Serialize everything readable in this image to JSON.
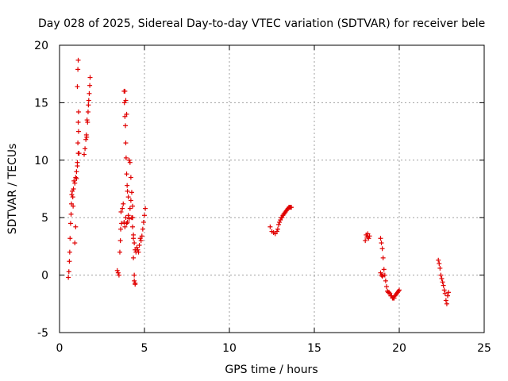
{
  "chart_data": {
    "type": "scatter",
    "title": "Day 028 of 2025, Sidereal Day-to-day VTEC variation (SDTVAR) for receiver bele",
    "xlabel": "GPS time / hours",
    "ylabel": "SDTVAR / TECUs",
    "xlim": [
      0,
      25
    ],
    "ylim": [
      -5,
      20
    ],
    "xticks": [
      0,
      5,
      10,
      15,
      20,
      25
    ],
    "yticks": [
      -5,
      0,
      5,
      10,
      15,
      20
    ],
    "grid": true,
    "marker": "+",
    "color": "#e00000",
    "series": [
      {
        "name": "SDTVAR",
        "segments": [
          {
            "x": [
              0.52,
              0.55,
              0.58,
              0.6,
              0.62,
              0.65,
              0.68,
              0.7,
              0.72,
              0.75,
              0.78,
              0.8,
              0.82,
              0.85,
              0.9,
              0.95,
              1.0,
              1.05,
              1.1,
              1.15
            ],
            "y": [
              -0.2,
              0.3,
              1.2,
              2.0,
              3.2,
              4.5,
              5.3,
              6.2,
              7.0,
              7.3,
              6.8,
              6.0,
              7.5,
              8.2,
              8.0,
              8.5,
              9.0,
              9.5,
              10.6,
              10.6
            ]
          },
          {
            "x": [
              0.9,
              0.95,
              1.0,
              1.05,
              1.08,
              1.1,
              1.12
            ],
            "y": [
              2.8,
              4.2,
              8.4,
              9.8,
              11.5,
              13.3,
              14.2
            ]
          },
          {
            "x": [
              1.05,
              1.08,
              1.1,
              1.12
            ],
            "y": [
              16.4,
              17.9,
              18.7,
              12.5
            ]
          },
          {
            "x": [
              1.45,
              1.5,
              1.55,
              1.58,
              1.6,
              1.62,
              1.65,
              1.68,
              1.7,
              1.72,
              1.75,
              1.78,
              1.8
            ],
            "y": [
              10.5,
              11.0,
              11.8,
              12.2,
              12.0,
              13.5,
              13.3,
              14.2,
              14.8,
              15.2,
              15.8,
              16.5,
              17.2
            ]
          },
          {
            "x": [
              3.4,
              3.45,
              3.5,
              3.55,
              3.58,
              3.6,
              3.62,
              3.65,
              3.7,
              3.75,
              3.8,
              3.85,
              3.9,
              3.95,
              4.0,
              4.05,
              4.1,
              4.15,
              4.2,
              4.25,
              4.3,
              4.35,
              4.4,
              4.45,
              4.5,
              4.55,
              4.6,
              4.65,
              4.7,
              4.75,
              4.8,
              4.85,
              4.9,
              4.95,
              5.0,
              5.05
            ],
            "y": [
              0.4,
              0.2,
              0.0,
              2.0,
              3.0,
              4.0,
              5.5,
              4.5,
              5.8,
              6.2,
              4.6,
              4.2,
              5.0,
              4.5,
              4.6,
              5.2,
              4.9,
              5.8,
              6.5,
              5.0,
              4.2,
              3.2,
              2.8,
              2.2,
              2.0,
              2.4,
              2.2,
              2.0,
              2.6,
              3.2,
              3.0,
              3.4,
              4.0,
              4.6,
              5.2,
              5.8
            ]
          },
          {
            "x": [
              3.8,
              3.82,
              3.85,
              3.88,
              3.9,
              3.92,
              3.95,
              3.98,
              4.0,
              4.05
            ],
            "y": [
              16.0,
              15.0,
              13.8,
              13.0,
              11.5,
              10.2,
              8.8,
              7.8,
              7.3,
              6.8
            ]
          },
          {
            "x": [
              3.85,
              3.9,
              3.95
            ],
            "y": [
              16.0,
              15.2,
              14.0
            ]
          },
          {
            "x": [
              4.1,
              4.15,
              4.2,
              4.25,
              4.3,
              4.35,
              4.4,
              4.45
            ],
            "y": [
              10.0,
              9.8,
              8.5,
              7.2,
              6.0,
              3.5,
              0.0,
              -0.8
            ]
          },
          {
            "x": [
              4.3,
              4.35,
              4.4,
              4.45
            ],
            "y": [
              5.0,
              1.5,
              -0.5,
              -0.7
            ]
          },
          {
            "x": [
              12.4,
              12.5,
              12.6,
              12.7,
              12.8,
              12.85,
              12.9,
              12.95,
              13.0,
              13.05,
              13.1,
              13.15,
              13.2,
              13.25,
              13.3,
              13.35,
              13.4,
              13.45,
              13.5,
              13.55,
              13.6,
              13.65
            ],
            "y": [
              4.2,
              3.8,
              3.7,
              3.6,
              3.8,
              4.0,
              4.4,
              4.6,
              4.8,
              5.0,
              5.0,
              5.2,
              5.3,
              5.4,
              5.5,
              5.6,
              5.7,
              5.8,
              5.9,
              5.9,
              5.9,
              5.9
            ]
          },
          {
            "x": [
              18.0,
              18.05,
              18.1,
              18.15,
              18.2,
              18.25
            ],
            "y": [
              3.0,
              3.5,
              3.3,
              3.6,
              3.2,
              3.4
            ]
          },
          {
            "x": [
              18.9,
              18.95,
              19.0,
              19.05,
              19.1,
              19.15,
              19.2,
              19.25,
              19.3,
              19.35,
              19.4,
              19.45,
              19.5,
              19.55,
              19.6,
              19.65,
              19.7,
              19.75,
              19.8,
              19.85,
              19.9,
              19.95,
              20.0
            ],
            "y": [
              3.2,
              2.8,
              2.3,
              1.5,
              0.5,
              0.0,
              -0.5,
              -1.0,
              -1.4,
              -1.5,
              -1.5,
              -1.6,
              -1.8,
              -1.8,
              -2.0,
              -2.0,
              -2.0,
              -1.8,
              -1.7,
              -1.6,
              -1.5,
              -1.4,
              -1.3
            ]
          },
          {
            "x": [
              18.9,
              18.95,
              19.0,
              19.05
            ],
            "y": [
              0.2,
              0.0,
              -0.1,
              0.0
            ]
          },
          {
            "x": [
              22.3,
              22.35,
              22.4,
              22.45,
              22.5,
              22.55,
              22.6,
              22.65,
              22.7,
              22.75,
              22.8,
              22.85,
              22.9
            ],
            "y": [
              1.3,
              1.0,
              0.6,
              0.0,
              -0.3,
              -0.6,
              -0.9,
              -1.3,
              -1.6,
              -2.2,
              -2.5,
              -1.8,
              -1.5
            ]
          }
        ]
      }
    ]
  }
}
